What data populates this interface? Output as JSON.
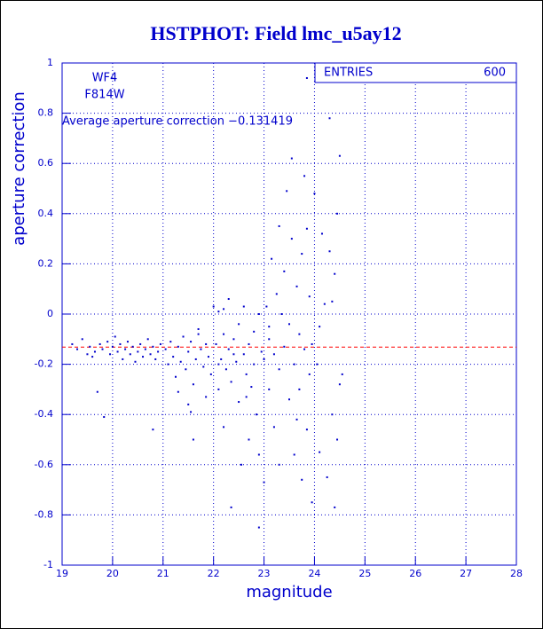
{
  "chart_data": {
    "type": "scatter",
    "title": "HSTPHOT: Field lmc_u5ay12",
    "x_label": "magnitude",
    "y_label": "aperture correction",
    "annotations": [
      "WF4",
      "F814W",
      "Average aperture correction −0.131419"
    ],
    "stats": {
      "label": "ENTRIES",
      "value": 600
    },
    "hline": -0.131419,
    "hline_color": "#ff0000",
    "color": "#0000cc",
    "grid": true,
    "xlim": [
      19,
      28
    ],
    "xticks": [
      19,
      20,
      21,
      22,
      23,
      24,
      25,
      26,
      27,
      28
    ],
    "ylim": [
      -1,
      1
    ],
    "yticks": [
      -1,
      -0.8,
      -0.6,
      -0.4,
      -0.2,
      0,
      0.2,
      0.4,
      0.6,
      0.8,
      1
    ],
    "x": [
      19.2,
      19.3,
      19.4,
      19.5,
      19.55,
      19.6,
      19.65,
      19.7,
      19.75,
      19.8,
      19.9,
      19.95,
      20.0,
      20.05,
      20.1,
      20.15,
      20.2,
      20.25,
      20.3,
      20.35,
      20.4,
      20.45,
      20.5,
      20.55,
      20.6,
      20.65,
      20.7,
      20.75,
      20.8,
      20.85,
      20.9,
      20.95,
      20.8,
      19.83,
      21.05,
      21.1,
      21.15,
      21.2,
      21.25,
      21.3,
      21.35,
      21.4,
      21.45,
      21.5,
      21.5,
      21.55,
      21.6,
      21.65,
      21.7,
      21.75,
      21.8,
      21.85,
      21.9,
      21.95,
      21.6,
      21.55,
      21.3,
      21.85,
      21.7,
      22.0,
      22.05,
      22.1,
      22.1,
      22.15,
      22.2,
      22.2,
      22.25,
      22.3,
      22.3,
      22.35,
      22.35,
      22.4,
      22.45,
      22.5,
      22.5,
      22.55,
      22.6,
      22.6,
      22.65,
      22.7,
      22.7,
      22.75,
      22.8,
      22.8,
      22.85,
      22.9,
      22.9,
      22.95,
      22.9,
      22.1,
      22.4,
      22.65,
      22.2,
      23.0,
      23.0,
      23.05,
      23.1,
      23.1,
      23.15,
      23.2,
      23.2,
      23.25,
      23.3,
      23.3,
      23.35,
      23.4,
      23.4,
      23.45,
      23.5,
      23.5,
      23.55,
      23.6,
      23.6,
      23.65,
      23.7,
      23.7,
      23.75,
      23.75,
      23.8,
      23.8,
      23.85,
      23.85,
      23.9,
      23.9,
      23.95,
      23.95,
      23.55,
      23.3,
      23.1,
      23.65,
      23.85,
      24.0,
      24.05,
      24.1,
      24.15,
      24.2,
      24.25,
      24.3,
      24.3,
      24.35,
      24.4,
      24.4,
      24.45,
      24.5,
      24.5,
      24.55,
      24.1,
      24.35,
      24.45
    ],
    "values": [
      -0.12,
      -0.14,
      -0.1,
      -0.16,
      -0.13,
      -0.17,
      -0.15,
      -0.31,
      -0.12,
      -0.14,
      -0.11,
      -0.16,
      -0.13,
      -0.09,
      -0.15,
      -0.12,
      -0.18,
      -0.14,
      -0.11,
      -0.16,
      -0.13,
      -0.19,
      -0.15,
      -0.12,
      -0.17,
      -0.14,
      -0.1,
      -0.16,
      -0.13,
      -0.18,
      -0.15,
      -0.12,
      -0.46,
      -0.41,
      -0.14,
      -0.2,
      -0.11,
      -0.17,
      -0.25,
      -0.13,
      -0.19,
      -0.09,
      -0.22,
      -0.15,
      -0.36,
      -0.11,
      -0.28,
      -0.18,
      -0.06,
      -0.14,
      -0.21,
      -0.12,
      -0.17,
      -0.24,
      -0.5,
      -0.39,
      -0.31,
      -0.33,
      -0.08,
      0.03,
      -0.12,
      -0.3,
      0.01,
      -0.18,
      -0.08,
      -0.45,
      -0.22,
      -0.14,
      0.06,
      -0.27,
      -0.77,
      -0.1,
      -0.19,
      -0.04,
      -0.35,
      -0.6,
      -0.16,
      0.03,
      -0.24,
      -0.12,
      -0.5,
      -0.29,
      -0.07,
      -0.2,
      -0.4,
      0.0,
      -0.56,
      -0.15,
      -0.85,
      -0.2,
      -0.16,
      -0.33,
      0.02,
      -0.18,
      -0.67,
      0.03,
      -0.1,
      -0.3,
      0.22,
      -0.16,
      -0.45,
      0.08,
      -0.22,
      -0.6,
      0.0,
      0.17,
      -0.13,
      0.49,
      -0.34,
      -0.04,
      0.3,
      -0.2,
      -0.56,
      0.11,
      -0.08,
      -0.3,
      -0.66,
      0.24,
      -0.14,
      0.55,
      -0.46,
      0.34,
      0.07,
      -0.24,
      -0.12,
      -0.75,
      0.62,
      0.35,
      -0.05,
      -0.42,
      0.94,
      0.48,
      -0.2,
      -0.55,
      0.32,
      0.04,
      -0.65,
      0.78,
      0.25,
      -0.4,
      0.16,
      -0.77,
      0.4,
      -0.28,
      0.63,
      -0.24,
      -0.05,
      0.05,
      -0.5
    ]
  }
}
